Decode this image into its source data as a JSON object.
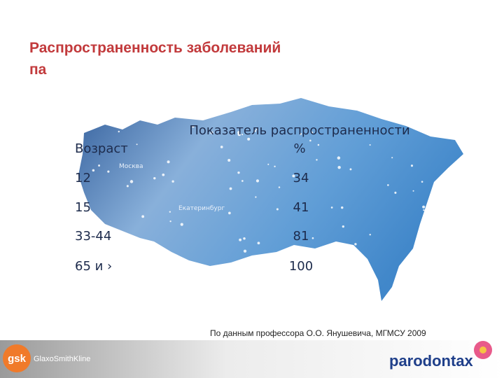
{
  "slide": {
    "title": [
      "Распространенность заболеваний",
      "па"
    ],
    "map_labels": [
      "Москва",
      "Екатеринбург"
    ],
    "table": {
      "header": [
        [
          "Возраст"
        ],
        [
          "Показатель распространенности",
          "%"
        ]
      ],
      "rows": [
        [
          "12",
          "34"
        ],
        [
          "15",
          "41"
        ],
        [
          "33-44",
          "81"
        ],
        [
          "65 и ›",
          "100"
        ]
      ]
    },
    "footnote": "По данным профессора О.О. Янушевича, МГМСУ 2009",
    "logos": {
      "gsk": "gsk",
      "gsk_name": "GlaxoSmithKline",
      "brand": "parodontax"
    }
  }
}
